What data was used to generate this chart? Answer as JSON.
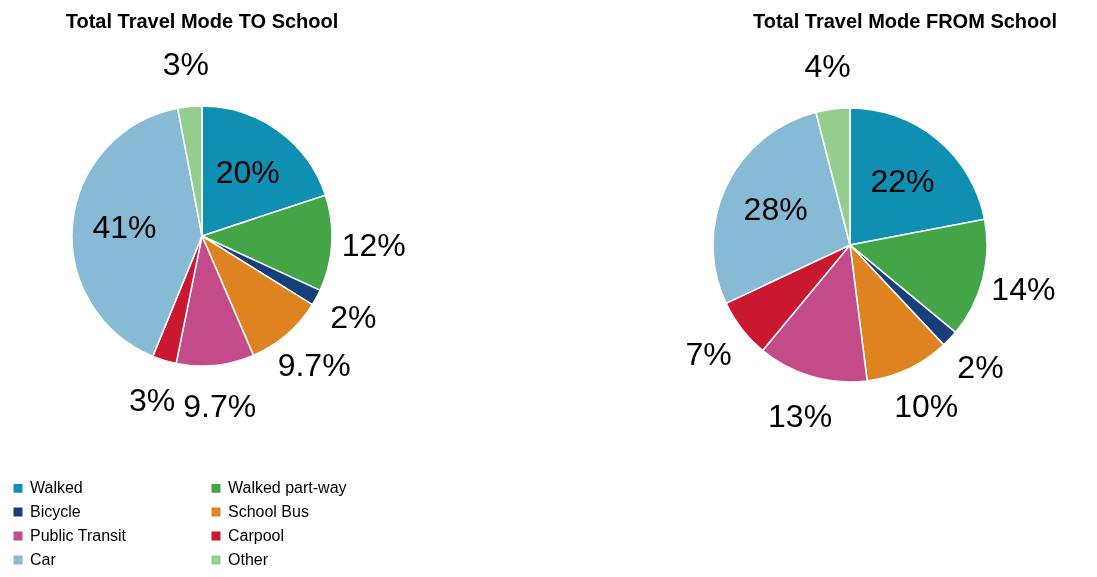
{
  "chart_data": [
    {
      "type": "pie",
      "title": "Total Travel Mode TO School",
      "categories": [
        "Walked",
        "Walked part-way",
        "Bicycle",
        "School Bus",
        "Public Transit",
        "Carpool",
        "Car",
        "Other"
      ],
      "values": [
        20,
        12,
        2,
        9.7,
        9.7,
        3,
        41,
        3
      ],
      "value_labels": [
        "20%",
        "12%",
        "2%",
        "9.7%",
        "9.7%",
        "3%",
        "41%",
        "3%"
      ],
      "colors": [
        "#0f8fb1",
        "#43a545",
        "#163f7a",
        "#df8220",
        "#c44b8a",
        "#c9182f",
        "#86bad5",
        "#95cd8f"
      ],
      "legend": "bottom"
    },
    {
      "type": "pie",
      "title": "Total Travel Mode FROM School",
      "categories": [
        null,
        null,
        null,
        null,
        null,
        null,
        null,
        null
      ],
      "values": [
        22,
        14,
        2,
        10,
        13,
        7,
        28,
        4
      ],
      "value_labels": [
        "22%",
        "14%",
        "2%",
        "10%",
        "13%",
        "7%",
        "28%",
        "4%"
      ],
      "colors": [
        "#0f8fb1",
        "#43a545",
        "#163f7a",
        "#df8220",
        "#c44b8a",
        "#c9182f",
        "#86bad5",
        "#95cd8f"
      ]
    }
  ]
}
